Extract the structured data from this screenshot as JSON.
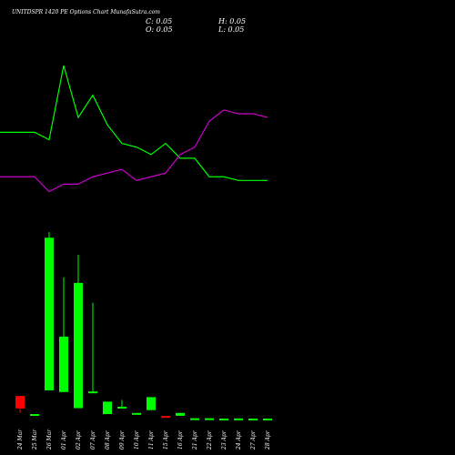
{
  "header": {
    "title": "UNITDSPR 1420  PE Options  Chart MunafaSutra.com",
    "close": "C: 0.05",
    "open": "O: 0.05",
    "high": "H: 0.05",
    "low": "L: 0.05"
  },
  "colors": {
    "background": "#000000",
    "up": "#00ff00",
    "down": "#ff0000",
    "line_green": "#00ff00",
    "line_magenta": "#cc00cc",
    "text": "#ffffff"
  },
  "chart_data": {
    "type": "candlestick",
    "x": [
      "24 Mar",
      "25 Mar",
      "26 Mar",
      "01 Apr",
      "02 Apr",
      "07 Apr",
      "08 Apr",
      "09 Apr",
      "10 Apr",
      "11 Apr",
      "15 Apr",
      "16 Apr",
      "21 Apr",
      "22 Apr",
      "23 Apr",
      "24 Apr",
      "27 Apr",
      "28 Apr"
    ],
    "open": [
      40.0,
      8.0,
      50.0,
      47.0,
      18.5,
      47.0,
      8.0,
      21.0,
      10.0,
      15.0,
      4.6,
      5.0,
      0.6,
      0.6,
      0.05,
      0.3,
      0.05,
      0.05
    ],
    "high": [
      40.0,
      8.0,
      330.0,
      250.0,
      290.0,
      205.0,
      30.0,
      33.0,
      10.0,
      38.0,
      4.6,
      10.0,
      0.6,
      0.6,
      0.05,
      0.3,
      0.05,
      0.05
    ],
    "low": [
      10.0,
      8.0,
      50.0,
      47.0,
      18.5,
      47.0,
      8.0,
      21.0,
      10.0,
      15.0,
      4.6,
      5.0,
      0.6,
      0.6,
      0.05,
      0.3,
      0.05,
      0.05
    ],
    "close": [
      18.0,
      8.0,
      320.0,
      145.0,
      240.0,
      48.0,
      30.0,
      21.0,
      10.0,
      38.0,
      2.8,
      10.0,
      0.6,
      0.6,
      0.05,
      0.3,
      0.05,
      0.05
    ],
    "overlay_green": [
      0.82,
      0.82,
      0.8,
      1.0,
      0.86,
      0.92,
      0.84,
      0.79,
      0.78,
      0.76,
      0.79,
      0.75,
      0.75,
      0.7,
      0.7,
      0.69,
      0.69,
      0.69
    ],
    "overlay_magenta": [
      0.7,
      0.7,
      0.66,
      0.68,
      0.68,
      0.7,
      0.71,
      0.72,
      0.69,
      0.7,
      0.71,
      0.76,
      0.78,
      0.85,
      0.88,
      0.87,
      0.87,
      0.86
    ]
  }
}
